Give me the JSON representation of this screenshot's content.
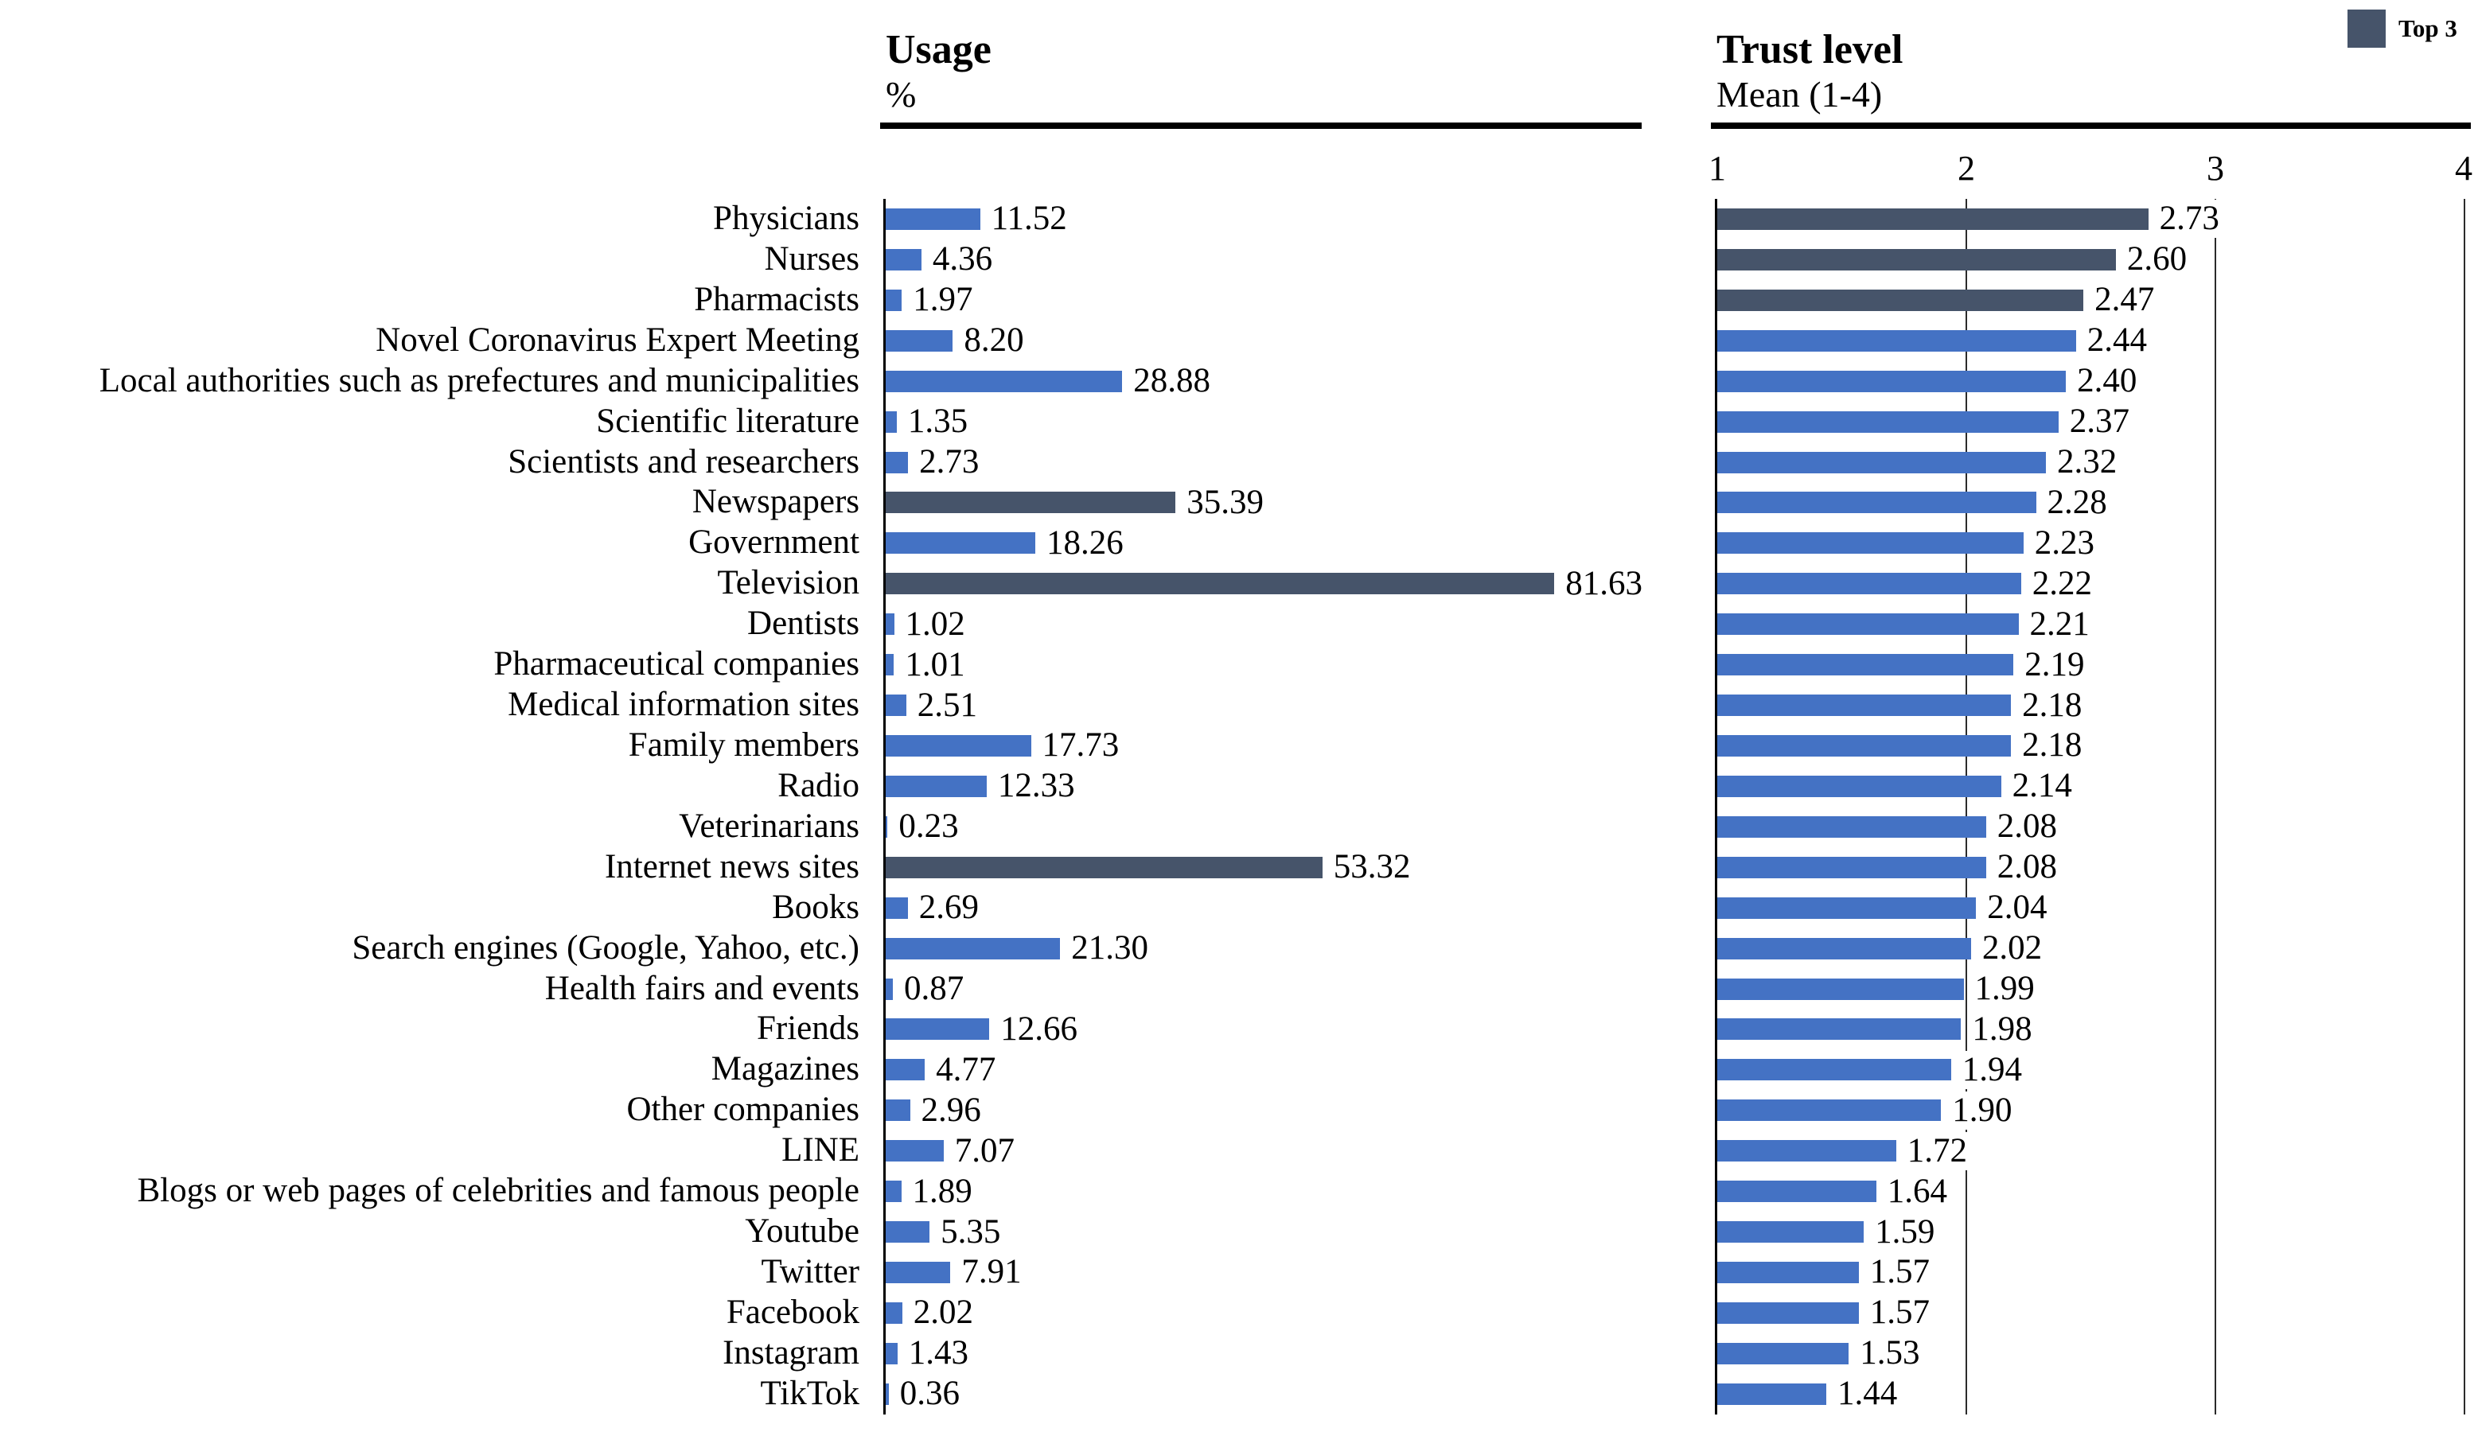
{
  "legend": {
    "label": "Top 3",
    "swatch_color": "#46546A"
  },
  "usage_panel": {
    "title": "Usage",
    "unit": "%"
  },
  "trust_panel": {
    "title": "Trust level",
    "unit": "Mean (1-4)",
    "ticks": [
      "1",
      "2",
      "3",
      "4"
    ]
  },
  "display": {
    "usage_labels": [
      "11.52",
      "4.36",
      "1.97",
      "8.20",
      "28.88",
      "1.35",
      "2.73",
      "35.39",
      "18.26",
      "81.63",
      "1.02",
      "1.01",
      "2.51",
      "17.73",
      "12.33",
      "0.23",
      "53.32",
      "2.69",
      "21.30",
      "0.87",
      "12.66",
      "4.77",
      "2.96",
      "7.07",
      "1.89",
      "5.35",
      "7.91",
      "2.02",
      "1.43",
      "0.36"
    ],
    "trust_labels": [
      "2.73",
      "2.60",
      "2.47",
      "2.44",
      "2.40",
      "2.37",
      "2.32",
      "2.28",
      "2.23",
      "2.22",
      "2.21",
      "2.19",
      "2.18",
      "2.18",
      "2.14",
      "2.08",
      "2.08",
      "2.04",
      "2.02",
      "1.99",
      "1.98",
      "1.94",
      "1.90",
      "1.72",
      "1.64",
      "1.59",
      "1.57",
      "1.57",
      "1.53",
      "1.44"
    ]
  },
  "chart_data": {
    "type": "bar",
    "orientation": "horizontal",
    "categories": [
      "Physicians",
      "Nurses",
      "Pharmacists",
      "Novel Coronavirus Expert Meeting",
      "Local authorities such as prefectures and municipalities",
      "Scientific literature",
      "Scientists and researchers",
      "Newspapers",
      "Government",
      "Television",
      "Dentists",
      "Pharmaceutical companies",
      "Medical information sites",
      "Family members",
      "Radio",
      "Veterinarians",
      "Internet news sites",
      "Books",
      "Search engines (Google, Yahoo, etc.)",
      "Health fairs and events",
      "Friends",
      "Magazines",
      "Other companies",
      "LINE",
      "Blogs or web pages of celebrities and famous people",
      "Youtube",
      "Twitter",
      "Facebook",
      "Instagram",
      "TikTok"
    ],
    "series": [
      {
        "name": "Usage",
        "unit": "%",
        "values": [
          11.52,
          4.36,
          1.97,
          8.2,
          28.88,
          1.35,
          2.73,
          35.39,
          18.26,
          81.63,
          1.02,
          1.01,
          2.51,
          17.73,
          12.33,
          0.23,
          53.32,
          2.69,
          21.3,
          0.87,
          12.66,
          4.77,
          2.96,
          7.07,
          1.89,
          5.35,
          7.91,
          2.02,
          1.43,
          0.36
        ]
      },
      {
        "name": "Trust level",
        "unit": "Mean (1-4)",
        "values": [
          2.73,
          2.6,
          2.47,
          2.44,
          2.4,
          2.37,
          2.32,
          2.28,
          2.23,
          2.22,
          2.21,
          2.19,
          2.18,
          2.18,
          2.14,
          2.08,
          2.08,
          2.04,
          2.02,
          1.99,
          1.98,
          1.94,
          1.9,
          1.72,
          1.64,
          1.59,
          1.57,
          1.57,
          1.53,
          1.44
        ]
      }
    ],
    "usage_axis": {
      "min": 0,
      "max": 92,
      "tick_labels_shown": false
    },
    "trust_axis": {
      "min": 1,
      "max": 4,
      "ticks": [
        1,
        2,
        3,
        4
      ],
      "gridlines_at": [
        2,
        3,
        4
      ]
    },
    "legend": {
      "label": "Top 3",
      "position": "top-right"
    },
    "highlight": {
      "usage_top3": [
        "Television",
        "Internet news sites",
        "Newspapers"
      ],
      "trust_top3": [
        "Physicians",
        "Nurses",
        "Pharmacists"
      ]
    },
    "colors": {
      "default_bar": "#4472C4",
      "top3_bar": "#46546A"
    }
  }
}
